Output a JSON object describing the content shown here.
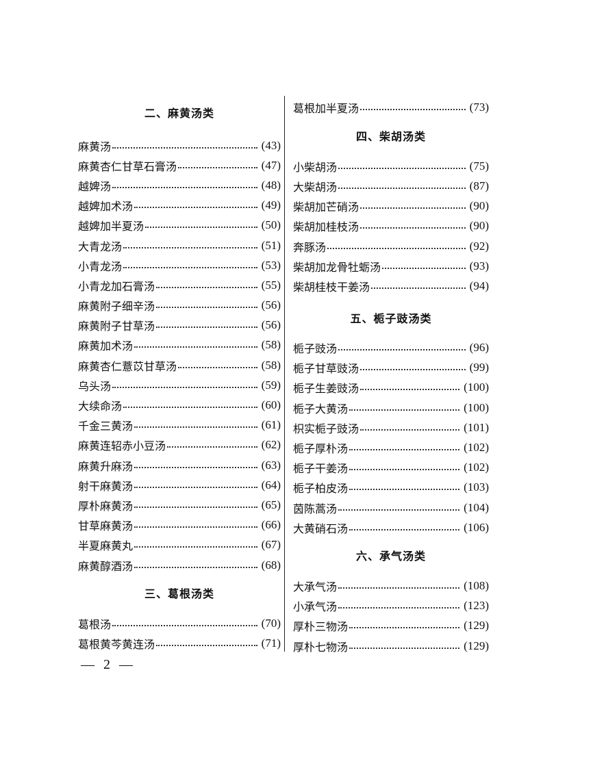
{
  "left": {
    "section2": {
      "title": "二、麻黄汤类",
      "items": [
        {
          "name": "麻黄汤",
          "page": "(43)"
        },
        {
          "name": "麻黄杏仁甘草石膏汤",
          "page": "(47)"
        },
        {
          "name": "越婢汤",
          "page": "(48)"
        },
        {
          "name": "越婢加术汤",
          "page": "(49)"
        },
        {
          "name": "越婢加半夏汤",
          "page": "(50)"
        },
        {
          "name": "大青龙汤",
          "page": "(51)"
        },
        {
          "name": "小青龙汤",
          "page": "(53)"
        },
        {
          "name": "小青龙加石膏汤",
          "page": "(55)"
        },
        {
          "name": "麻黄附子细辛汤",
          "page": "(56)"
        },
        {
          "name": "麻黄附子甘草汤",
          "page": "(56)"
        },
        {
          "name": "麻黄加术汤",
          "page": "(58)"
        },
        {
          "name": "麻黄杏仁薏苡甘草汤",
          "page": "(58)"
        },
        {
          "name": "乌头汤",
          "page": "(59)"
        },
        {
          "name": "大续命汤",
          "page": "(60)"
        },
        {
          "name": "千金三黄汤",
          "page": "(61)"
        },
        {
          "name": "麻黄连轺赤小豆汤",
          "page": "(62)"
        },
        {
          "name": "麻黄升麻汤",
          "page": "(63)"
        },
        {
          "name": "射干麻黄汤",
          "page": "(64)"
        },
        {
          "name": "厚朴麻黄汤",
          "page": "(65)"
        },
        {
          "name": "甘草麻黄汤",
          "page": "(66)"
        },
        {
          "name": "半夏麻黄丸",
          "page": "(67)"
        },
        {
          "name": "麻黄醇酒汤",
          "page": "(68)"
        }
      ]
    },
    "section3": {
      "title": "三、葛根汤类",
      "items": [
        {
          "name": "葛根汤",
          "page": "(70)"
        },
        {
          "name": "葛根黄芩黄连汤",
          "page": "(71)"
        }
      ]
    }
  },
  "right": {
    "continued": [
      {
        "name": "葛根加半夏汤",
        "page": "(73)"
      }
    ],
    "section4": {
      "title": "四、柴胡汤类",
      "items": [
        {
          "name": "小柴胡汤",
          "page": "(75)"
        },
        {
          "name": "大柴胡汤",
          "page": "(87)"
        },
        {
          "name": "柴胡加芒硝汤",
          "page": "(90)"
        },
        {
          "name": "柴胡加桂枝汤",
          "page": "(90)"
        },
        {
          "name": "奔豚汤",
          "page": "(92)"
        },
        {
          "name": "柴胡加龙骨牡蛎汤",
          "page": "(93)"
        },
        {
          "name": "柴胡桂枝干姜汤",
          "page": "(94)"
        }
      ]
    },
    "section5": {
      "title": "五、栀子豉汤类",
      "items": [
        {
          "name": "栀子豉汤",
          "page": "(96)"
        },
        {
          "name": "栀子甘草豉汤",
          "page": "(99)"
        },
        {
          "name": "栀子生姜豉汤",
          "page": "(100)"
        },
        {
          "name": "栀子大黄汤",
          "page": "(100)"
        },
        {
          "name": "枳实栀子豉汤",
          "page": "(101)"
        },
        {
          "name": "栀子厚朴汤",
          "page": "(102)"
        },
        {
          "name": "栀子干姜汤",
          "page": "(102)"
        },
        {
          "name": "栀子柏皮汤",
          "page": "(103)"
        },
        {
          "name": "茵陈蒿汤",
          "page": "(104)"
        },
        {
          "name": "大黄硝石汤",
          "page": "(106)"
        }
      ]
    },
    "section6": {
      "title": "六、承气汤类",
      "items": [
        {
          "name": "大承气汤",
          "page": "(108)"
        },
        {
          "name": "小承气汤",
          "page": "(123)"
        },
        {
          "name": "厚朴三物汤",
          "page": "(129)"
        },
        {
          "name": "厚朴七物汤",
          "page": "(129)"
        }
      ]
    }
  },
  "footer": {
    "page_number": "— 2 —"
  }
}
